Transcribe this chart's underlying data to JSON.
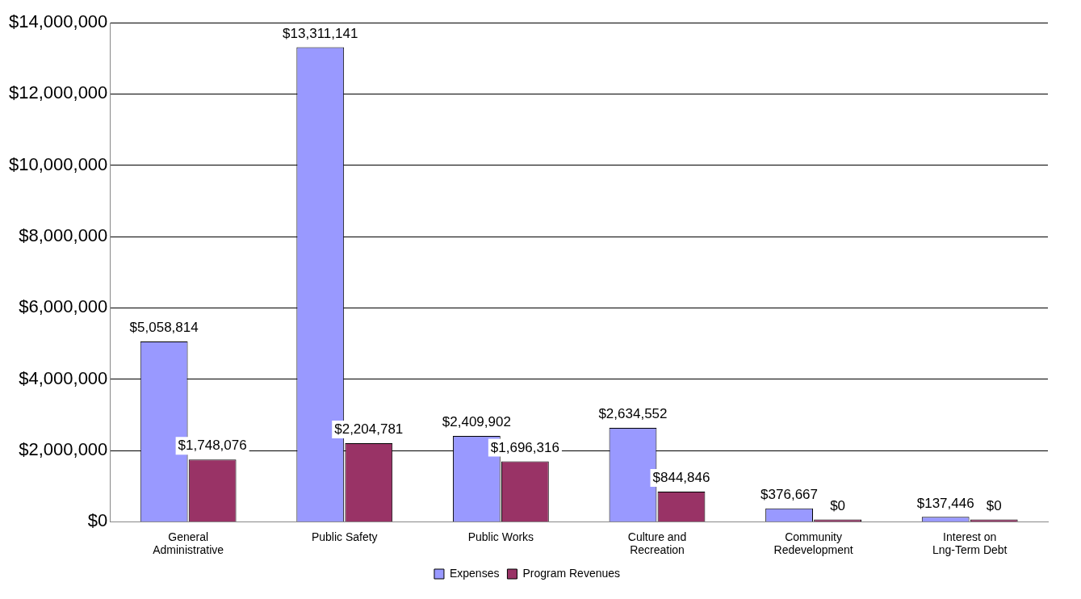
{
  "chart_data": {
    "type": "bar",
    "categories": [
      "General Administrative",
      "Public Safety",
      "Public Works",
      "Culture and Recreation",
      "Community Redevelopment",
      "Interest on Lng-Term Debt"
    ],
    "series": [
      {
        "name": "Expenses",
        "color": "#9999ff",
        "values": [
          5058814,
          13311141,
          2409902,
          2634552,
          376667,
          137446
        ],
        "value_labels": [
          "$5,058,814",
          "$13,311,141",
          "$2,409,902",
          "$2,634,552",
          "$376,667",
          "$137,446"
        ]
      },
      {
        "name": "Program Revenues",
        "color": "#993366",
        "values": [
          1748076,
          2204781,
          1696316,
          844846,
          0,
          0
        ],
        "value_labels": [
          "$1,748,076",
          "$2,204,781",
          "$1,696,316",
          "$844,846",
          "$0",
          "$0"
        ]
      }
    ],
    "ylim": [
      0,
      14000000
    ],
    "yticks": [
      {
        "value": 0,
        "label": "$0"
      },
      {
        "value": 2000000,
        "label": "$2,000,000"
      },
      {
        "value": 4000000,
        "label": "$4,000,000"
      },
      {
        "value": 6000000,
        "label": "$6,000,000"
      },
      {
        "value": 8000000,
        "label": "$8,000,000"
      },
      {
        "value": 10000000,
        "label": "$10,000,000"
      },
      {
        "value": 12000000,
        "label": "$12,000,000"
      },
      {
        "value": 14000000,
        "label": "$14,000,000"
      }
    ],
    "grid": "y",
    "legend": "bottom"
  }
}
